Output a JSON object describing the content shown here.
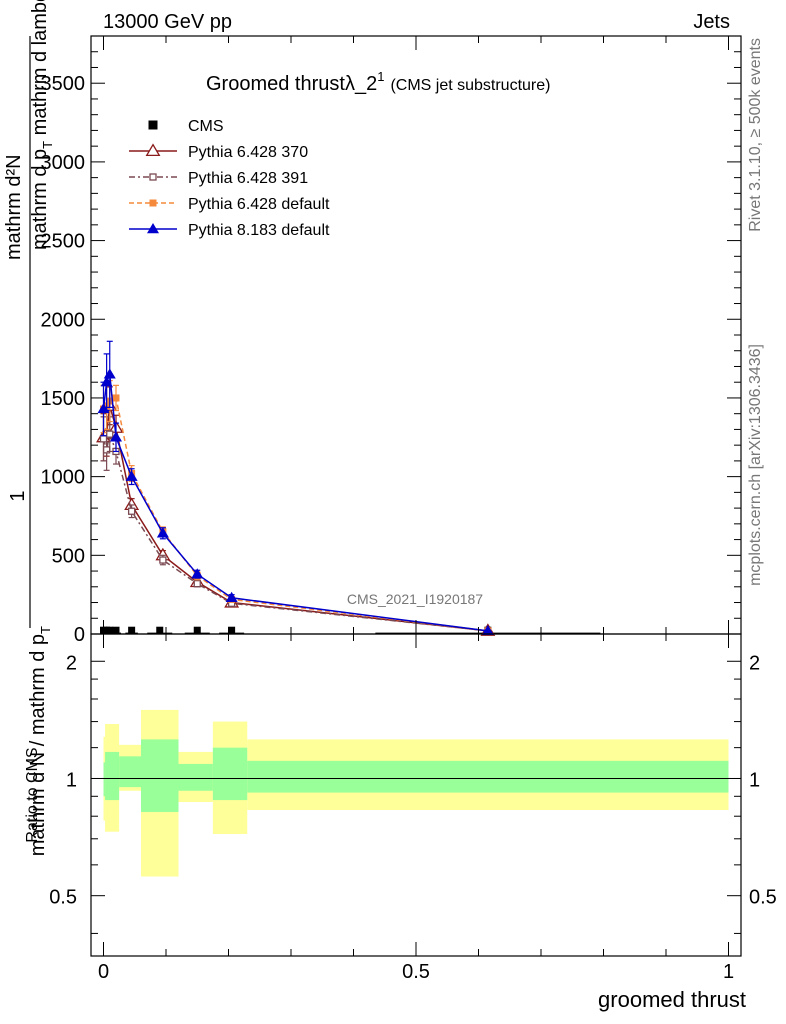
{
  "header": {
    "left": "13000 GeV pp",
    "right": "Jets",
    "side_top": "Rivet 3.1.10, ≥ 500k events",
    "side_bottom": "mcplots.cern.ch [arXiv:1306.3436]",
    "watermark": "CMS_2021_I1920187"
  },
  "title": {
    "main": "Groomed thrustλ_2",
    "sup": "1",
    "sub": "(CMS jet substructure)"
  },
  "labels": {
    "ylabel_top": "mathrm d²N",
    "ylabel_top2": "mathrm d p",
    "ylabel_top2_sub": "T",
    "ylabel_top3": " mathrm d lambda",
    "ylabel_frac_num": "1",
    "ylabel_frac_den": "mathrm d N / mathrm d p",
    "ylabel_frac_den_sub": "T",
    "ratio_ylabel": "Ratio to CMS",
    "xlabel": "groomed thrust"
  },
  "colors": {
    "cms": "#000000",
    "p370": "#8b1a1a",
    "p391": "#7a4a52",
    "pdef": "#f58a3c",
    "p8": "#0000cc",
    "band_outer": "#ffff99",
    "band_inner": "#99ff99"
  },
  "chart_data": [
    {
      "type": "line",
      "panel": "main",
      "xlim": [
        -0.02,
        1.02
      ],
      "ylim": [
        0,
        3800
      ],
      "yticks": [
        0,
        500,
        1000,
        1500,
        2000,
        2500,
        3000,
        3500
      ],
      "ytick_labels": [
        "0",
        "500",
        "1000",
        "1500",
        "2000",
        "2500",
        "3000",
        "3500"
      ],
      "legend_position": "top-left",
      "series": [
        {
          "name": "CMS",
          "marker": "square",
          "x": [
            0.0,
            0.005,
            0.01,
            0.02,
            0.045,
            0.09,
            0.15,
            0.205,
            0.615
          ],
          "y": [
            5,
            5,
            5,
            5,
            5,
            5,
            5,
            5,
            5
          ],
          "xerr": [
            0.0025,
            0.0025,
            0.005,
            0.008,
            0.01,
            0.02,
            0.02,
            0.02,
            0.18
          ],
          "yerr": [
            0,
            0,
            0,
            0,
            0,
            0,
            0,
            0,
            0
          ]
        },
        {
          "name": "Pythia 6.428 370",
          "marker": "open-triangle",
          "x": [
            0.0,
            0.005,
            0.01,
            0.02,
            0.045,
            0.095,
            0.15,
            0.205,
            0.615
          ],
          "y": [
            1250,
            1270,
            1450,
            1310,
            820,
            500,
            330,
            200,
            20
          ],
          "yerr": [
            150,
            140,
            120,
            80,
            40,
            30,
            20,
            15,
            5
          ]
        },
        {
          "name": "Pythia 6.428 391",
          "marker": "open-square",
          "x": [
            0.0,
            0.005,
            0.01,
            0.02,
            0.045,
            0.095,
            0.15,
            0.205,
            0.615
          ],
          "y": [
            1240,
            1170,
            1270,
            1160,
            780,
            470,
            320,
            195,
            20
          ],
          "yerr": [
            140,
            130,
            110,
            80,
            40,
            30,
            20,
            15,
            5
          ]
        },
        {
          "name": "Pythia 6.428 default",
          "marker": "filled-square",
          "x": [
            0.0,
            0.005,
            0.01,
            0.02,
            0.045,
            0.095,
            0.15,
            0.205,
            0.615
          ],
          "y": [
            1430,
            1450,
            1480,
            1500,
            1020,
            650,
            370,
            220,
            20
          ],
          "yerr": [
            150,
            150,
            130,
            80,
            50,
            30,
            25,
            15,
            5
          ]
        },
        {
          "name": "Pythia 8.183 default",
          "marker": "filled-triangle",
          "x": [
            0.0,
            0.005,
            0.01,
            0.02,
            0.045,
            0.095,
            0.15,
            0.205,
            0.615
          ],
          "y": [
            1430,
            1600,
            1650,
            1250,
            1000,
            640,
            380,
            230,
            20
          ],
          "yerr": [
            170,
            180,
            210,
            90,
            50,
            35,
            25,
            20,
            5
          ]
        }
      ]
    },
    {
      "type": "area",
      "panel": "ratio",
      "xlim": [
        -0.02,
        1.02
      ],
      "ylim": [
        0.35,
        2.35
      ],
      "yscale": "log",
      "yticks": [
        0.5,
        1,
        2
      ],
      "ytick_labels": [
        "0.5",
        "1",
        "2"
      ],
      "xticks": [
        0,
        0.5,
        1
      ],
      "xtick_labels": [
        "0",
        "0.5",
        "1"
      ],
      "bins": [
        {
          "x0": 0.0,
          "x1": 0.0025,
          "outer": [
            0.78,
            1.28
          ],
          "inner": [
            0.9,
            1.1
          ]
        },
        {
          "x0": 0.0025,
          "x1": 0.025,
          "outer": [
            0.73,
            1.38
          ],
          "inner": [
            0.88,
            1.17
          ]
        },
        {
          "x0": 0.025,
          "x1": 0.06,
          "outer": [
            0.93,
            1.22
          ],
          "inner": [
            0.95,
            1.14
          ]
        },
        {
          "x0": 0.06,
          "x1": 0.12,
          "outer": [
            0.56,
            1.5
          ],
          "inner": [
            0.82,
            1.26
          ]
        },
        {
          "x0": 0.12,
          "x1": 0.175,
          "outer": [
            0.87,
            1.17
          ],
          "inner": [
            0.93,
            1.09
          ]
        },
        {
          "x0": 0.175,
          "x1": 0.23,
          "outer": [
            0.72,
            1.4
          ],
          "inner": [
            0.88,
            1.2
          ]
        },
        {
          "x0": 0.23,
          "x1": 1.0,
          "outer": [
            0.83,
            1.26
          ],
          "inner": [
            0.92,
            1.11
          ]
        }
      ],
      "reference_line": 1
    }
  ]
}
